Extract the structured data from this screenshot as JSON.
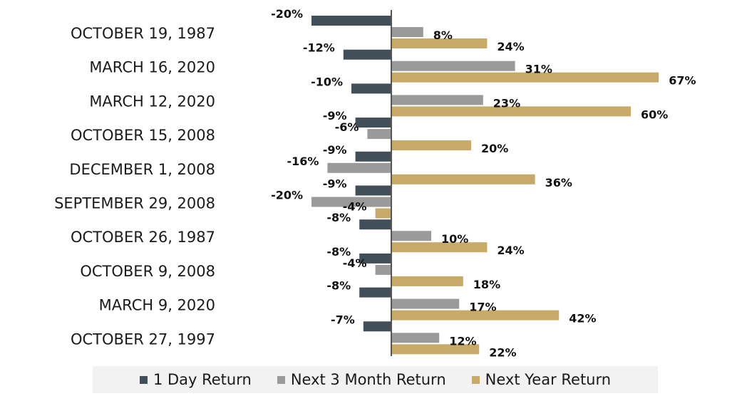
{
  "colors": {
    "one_day": "#414f59",
    "three_month": "#9a9a9a",
    "next_year": "#c8aa68",
    "axis": "#555555"
  },
  "chart_data": {
    "type": "bar",
    "orientation": "horizontal",
    "categories": [
      "OCTOBER 19, 1987",
      "MARCH 16, 2020",
      "MARCH 12, 2020",
      "OCTOBER 15, 2008",
      "DECEMBER 1, 2008",
      "SEPTEMBER 29, 2008",
      "OCTOBER 26, 1987",
      "OCTOBER 9, 2008",
      "MARCH 9, 2020",
      "OCTOBER 27, 1997"
    ],
    "series": [
      {
        "name": "1 Day Return",
        "values": [
          -20,
          -12,
          -10,
          -9,
          -9,
          -9,
          -8,
          -8,
          -8,
          -7
        ]
      },
      {
        "name": "Next 3 Month Return",
        "values": [
          8,
          31,
          23,
          -6,
          -16,
          -20,
          10,
          -4,
          17,
          12
        ]
      },
      {
        "name": "Next Year Return",
        "values": [
          24,
          67,
          60,
          20,
          36,
          -4,
          24,
          18,
          42,
          22
        ]
      }
    ],
    "value_suffix": "%",
    "legend_position": "bottom",
    "grid": false
  }
}
